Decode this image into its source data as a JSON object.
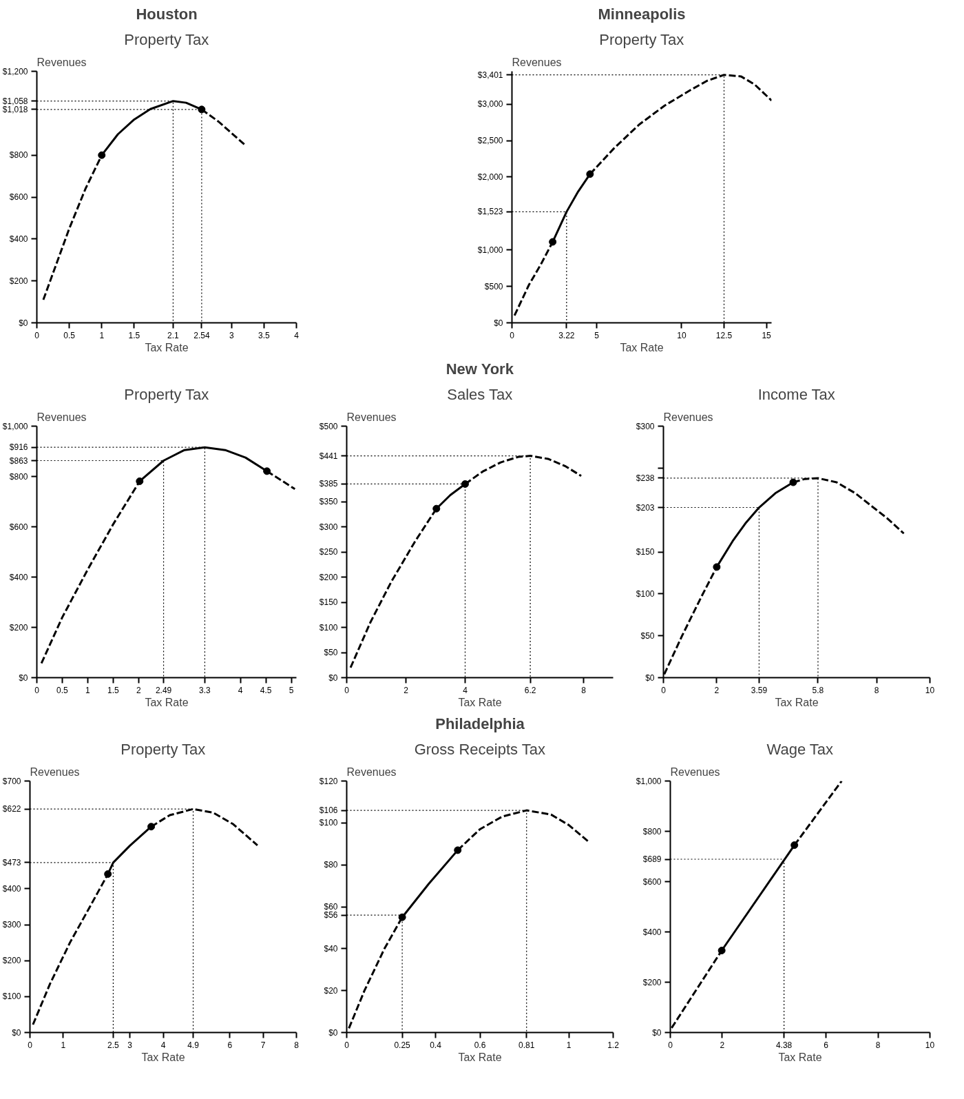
{
  "chart_data": [
    {
      "type": "line",
      "title": "Houston",
      "subtitle": "Property Tax",
      "ylabel": "Revenues",
      "xlabel": "Tax Rate",
      "xlim": [
        0,
        4
      ],
      "ylim": [
        0,
        1200
      ],
      "xticks": [
        0,
        0.5,
        1,
        1.5,
        2.1,
        2.54,
        3,
        3.5,
        4
      ],
      "yticks": [
        {
          "value": 0,
          "label": "$0"
        },
        {
          "value": 200,
          "label": "$200"
        },
        {
          "value": 400,
          "label": "$400"
        },
        {
          "value": 600,
          "label": "$600"
        },
        {
          "value": 800,
          "label": "$800"
        },
        {
          "value": 1018,
          "label": "$1,018"
        },
        {
          "value": 1058,
          "label": "$1,058"
        },
        {
          "value": 1200,
          "label": "$1,200"
        }
      ],
      "grid": false,
      "series": [
        {
          "line_style": "dashed",
          "color": "#000000",
          "x": [
            0.1,
            0.3,
            0.5,
            0.75,
            1
          ],
          "values": [
            110,
            280,
            450,
            640,
            800
          ]
        },
        {
          "line_style": "solid",
          "color": "#000000",
          "x": [
            1,
            1.25,
            1.5,
            1.75,
            2.1,
            2.3,
            2.54
          ],
          "values": [
            800,
            900,
            970,
            1020,
            1058,
            1050,
            1018
          ]
        },
        {
          "line_style": "dashed",
          "color": "#000000",
          "x": [
            2.54,
            2.8,
            3,
            3.22
          ],
          "values": [
            1018,
            960,
            905,
            845
          ]
        },
        {
          "line_style": "dotted",
          "color": "#000000",
          "x": [
            0,
            2.1,
            2.1
          ],
          "values": [
            1058,
            1058,
            0
          ]
        },
        {
          "line_style": "dotted",
          "color": "#000000",
          "x": [
            0,
            2.54,
            2.54
          ],
          "values": [
            1018,
            1018,
            0
          ]
        },
        {
          "type": "scatter",
          "marker": "circle",
          "color": "#000000",
          "x": [
            1,
            2.54
          ],
          "values": [
            800,
            1018
          ]
        }
      ]
    },
    {
      "type": "line",
      "title": "Minneapolis",
      "subtitle": "Property Tax",
      "ylabel": "Revenues",
      "xlabel": "Tax Rate",
      "xlim": [
        0,
        15.3
      ],
      "ylim": [
        0,
        3450
      ],
      "xticks": [
        0,
        3.22,
        5,
        10,
        12.5,
        15
      ],
      "yticks": [
        {
          "value": 0,
          "label": "$0"
        },
        {
          "value": 500,
          "label": "$500"
        },
        {
          "value": 1000,
          "label": "$1,000"
        },
        {
          "value": 1523,
          "label": "$1,523"
        },
        {
          "value": 2000,
          "label": "$2,000"
        },
        {
          "value": 2500,
          "label": "$2,500"
        },
        {
          "value": 3000,
          "label": "$3,000"
        },
        {
          "value": 3401,
          "label": "$3,401"
        }
      ],
      "grid": false,
      "series": [
        {
          "line_style": "dashed",
          "color": "#000000",
          "x": [
            0.15,
            1,
            1.7,
            2.4
          ],
          "values": [
            100,
            520,
            800,
            1110
          ]
        },
        {
          "line_style": "solid",
          "color": "#000000",
          "x": [
            2.4,
            3.22,
            3.9,
            4.6
          ],
          "values": [
            1110,
            1523,
            1800,
            2040
          ]
        },
        {
          "line_style": "dashed",
          "color": "#000000",
          "x": [
            4.6,
            6,
            7.5,
            9,
            10.5,
            11.5,
            12.5,
            13.5,
            14.3,
            15.3
          ],
          "values": [
            2040,
            2390,
            2720,
            2980,
            3190,
            3320,
            3401,
            3380,
            3270,
            3050
          ]
        },
        {
          "line_style": "dotted",
          "color": "#000000",
          "x": [
            0,
            3.22,
            3.22
          ],
          "values": [
            1523,
            1523,
            0
          ]
        },
        {
          "line_style": "dotted",
          "color": "#000000",
          "x": [
            0,
            12.5,
            12.5
          ],
          "values": [
            3401,
            3401,
            0
          ]
        },
        {
          "type": "scatter",
          "marker": "circle",
          "color": "#000000",
          "x": [
            2.4,
            4.6
          ],
          "values": [
            1110,
            2040
          ]
        }
      ]
    },
    {
      "type": "line",
      "subtitle": "Property Tax",
      "ylabel": "Revenues",
      "xlabel": "Tax Rate",
      "xlim": [
        0,
        5.1
      ],
      "ylim": [
        0,
        1000
      ],
      "xticks": [
        0,
        0.5,
        1,
        1.5,
        2,
        2.49,
        3.3,
        4,
        4.5,
        5
      ],
      "yticks": [
        {
          "value": 0,
          "label": "$0"
        },
        {
          "value": 200,
          "label": "$200"
        },
        {
          "value": 400,
          "label": "$400"
        },
        {
          "value": 600,
          "label": "$600"
        },
        {
          "value": 800,
          "label": "$800"
        },
        {
          "value": 863,
          "label": "$863"
        },
        {
          "value": 916,
          "label": "$916"
        },
        {
          "value": 1000,
          "label": "$1,000"
        }
      ],
      "grid": false,
      "series": [
        {
          "line_style": "dashed",
          "color": "#000000",
          "x": [
            0.09,
            0.5,
            1,
            1.5,
            2.02
          ],
          "values": [
            57,
            240,
            430,
            610,
            781
          ]
        },
        {
          "line_style": "solid",
          "color": "#000000",
          "x": [
            2.02,
            2.49,
            2.9,
            3.3,
            3.7,
            4.1,
            4.52
          ],
          "values": [
            781,
            863,
            905,
            916,
            905,
            875,
            821
          ]
        },
        {
          "line_style": "dashed",
          "color": "#000000",
          "x": [
            4.52,
            4.8,
            5.07
          ],
          "values": [
            821,
            785,
            750
          ]
        },
        {
          "line_style": "dotted",
          "color": "#000000",
          "x": [
            0,
            2.49,
            2.49
          ],
          "values": [
            863,
            863,
            0
          ]
        },
        {
          "line_style": "dotted",
          "color": "#000000",
          "x": [
            0,
            3.3,
            3.3
          ],
          "values": [
            916,
            916,
            0
          ]
        },
        {
          "type": "scatter",
          "marker": "circle",
          "color": "#000000",
          "x": [
            2.02,
            4.52
          ],
          "values": [
            781,
            821
          ]
        }
      ]
    },
    {
      "type": "line",
      "title": "New York",
      "subtitle": "Sales Tax",
      "ylabel": "Revenues",
      "xlabel": "Tax Rate",
      "xlim": [
        0,
        9
      ],
      "ylim": [
        0,
        500
      ],
      "xticks": [
        0,
        2,
        4,
        6.2,
        8
      ],
      "yticks": [
        {
          "value": 0,
          "label": "$0"
        },
        {
          "value": 50,
          "label": "$50"
        },
        {
          "value": 100,
          "label": "$100"
        },
        {
          "value": 150,
          "label": "$150"
        },
        {
          "value": 200,
          "label": "$200"
        },
        {
          "value": 250,
          "label": "$250"
        },
        {
          "value": 300,
          "label": "$300"
        },
        {
          "value": 350,
          "label": "$350"
        },
        {
          "value": 385,
          "label": "$385"
        },
        {
          "value": 441,
          "label": "$441"
        },
        {
          "value": 500,
          "label": "$500"
        }
      ],
      "grid": false,
      "series": [
        {
          "line_style": "dashed",
          "color": "#000000",
          "x": [
            0.13,
            0.8,
            1.5,
            2.3,
            3.03
          ],
          "values": [
            20,
            110,
            190,
            270,
            336
          ]
        },
        {
          "line_style": "solid",
          "color": "#000000",
          "x": [
            3.03,
            3.5,
            4
          ],
          "values": [
            336,
            363,
            385
          ]
        },
        {
          "line_style": "dashed",
          "color": "#000000",
          "x": [
            4,
            4.6,
            5.2,
            5.8,
            6.2,
            6.8,
            7.4,
            7.92
          ],
          "values": [
            385,
            410,
            428,
            439,
            441,
            435,
            420,
            401
          ]
        },
        {
          "line_style": "dotted",
          "color": "#000000",
          "x": [
            0,
            4,
            4
          ],
          "values": [
            385,
            385,
            0
          ]
        },
        {
          "line_style": "dotted",
          "color": "#000000",
          "x": [
            0,
            6.2,
            6.2
          ],
          "values": [
            441,
            441,
            0
          ]
        },
        {
          "type": "scatter",
          "marker": "circle",
          "color": "#000000",
          "x": [
            3.03,
            4
          ],
          "values": [
            336,
            385
          ]
        }
      ]
    },
    {
      "type": "line",
      "subtitle": "Income Tax",
      "ylabel": "Revenues",
      "xlabel": "Tax Rate",
      "xlim": [
        0,
        10
      ],
      "ylim": [
        0,
        300
      ],
      "xticks": [
        0,
        2,
        3.59,
        5.8,
        8,
        10
      ],
      "yticks": [
        {
          "value": 0,
          "label": "$0"
        },
        {
          "value": 50,
          "label": "$50"
        },
        {
          "value": 100,
          "label": "$100"
        },
        {
          "value": 150,
          "label": "$150"
        },
        {
          "value": 203,
          "label": "$203"
        },
        {
          "value": 238,
          "label": "$238"
        },
        {
          "value": 250,
          "label": null
        },
        {
          "value": 300,
          "label": "$300"
        }
      ],
      "grid": false,
      "series": [
        {
          "line_style": "dashed",
          "color": "#000000",
          "x": [
            0.03,
            0.7,
            1.4,
            2
          ],
          "values": [
            4,
            50,
            95,
            132
          ]
        },
        {
          "line_style": "solid",
          "color": "#000000",
          "x": [
            2,
            2.6,
            3.1,
            3.59,
            4.2,
            4.87
          ],
          "values": [
            132,
            163,
            185,
            203,
            220,
            233
          ]
        },
        {
          "line_style": "dashed",
          "color": "#000000",
          "x": [
            4.87,
            5.3,
            5.8,
            6.5,
            7.2,
            7.8,
            8.4,
            9.02
          ],
          "values": [
            233,
            237,
            238,
            233,
            220,
            205,
            190,
            172
          ]
        },
        {
          "line_style": "dotted",
          "color": "#000000",
          "x": [
            0,
            3.59,
            3.59
          ],
          "values": [
            203,
            203,
            0
          ]
        },
        {
          "line_style": "dotted",
          "color": "#000000",
          "x": [
            0,
            5.8,
            5.8
          ],
          "values": [
            238,
            238,
            0
          ]
        },
        {
          "type": "scatter",
          "marker": "circle",
          "color": "#000000",
          "x": [
            2,
            4.87
          ],
          "values": [
            132,
            233
          ]
        }
      ]
    },
    {
      "type": "line",
      "subtitle": "Property Tax",
      "ylabel": "Revenues",
      "xlabel": "Tax Rate",
      "xlim": [
        0,
        8
      ],
      "ylim": [
        0,
        700
      ],
      "xticks": [
        0,
        1,
        2.5,
        3,
        4,
        4.9,
        6,
        7,
        8
      ],
      "yticks": [
        {
          "value": 0,
          "label": "$0"
        },
        {
          "value": 100,
          "label": "$100"
        },
        {
          "value": 200,
          "label": "$200"
        },
        {
          "value": 300,
          "label": "$300"
        },
        {
          "value": 400,
          "label": "$400"
        },
        {
          "value": 473,
          "label": "$473"
        },
        {
          "value": 622,
          "label": "$622"
        },
        {
          "value": 700,
          "label": "$700"
        }
      ],
      "grid": false,
      "series": [
        {
          "line_style": "dashed",
          "color": "#000000",
          "x": [
            0.09,
            0.6,
            1.2,
            1.8,
            2.34
          ],
          "values": [
            22,
            135,
            250,
            350,
            441
          ]
        },
        {
          "line_style": "solid",
          "color": "#000000",
          "x": [
            2.34,
            2.5,
            3,
            3.64
          ],
          "values": [
            441,
            473,
            520,
            573
          ]
        },
        {
          "line_style": "dashed",
          "color": "#000000",
          "x": [
            3.64,
            4.2,
            4.9,
            5.5,
            6.1,
            6.83
          ],
          "values": [
            573,
            605,
            622,
            612,
            580,
            521
          ]
        },
        {
          "line_style": "dotted",
          "color": "#000000",
          "x": [
            0,
            2.5,
            2.5
          ],
          "values": [
            473,
            473,
            0
          ]
        },
        {
          "line_style": "dotted",
          "color": "#000000",
          "x": [
            0,
            4.9,
            4.9
          ],
          "values": [
            622,
            622,
            0
          ]
        },
        {
          "type": "scatter",
          "marker": "circle",
          "color": "#000000",
          "x": [
            2.34,
            3.64
          ],
          "values": [
            441,
            573
          ]
        }
      ]
    },
    {
      "type": "line",
      "title": "Philadelphia",
      "subtitle": "Gross Receipts Tax",
      "ylabel": "Revenues",
      "xlabel": "Tax Rate",
      "xlim": [
        0,
        1.2
      ],
      "ylim": [
        0,
        120
      ],
      "xticks": [
        0,
        0.25,
        0.4,
        0.6,
        0.81,
        1,
        1.2
      ],
      "yticks": [
        {
          "value": 0,
          "label": "$0"
        },
        {
          "value": 20,
          "label": "$20"
        },
        {
          "value": 40,
          "label": "$40"
        },
        {
          "value": 56,
          "label": "$56"
        },
        {
          "value": 60,
          "label": "$60"
        },
        {
          "value": 80,
          "label": "$80"
        },
        {
          "value": 100,
          "label": "$100"
        },
        {
          "value": 106,
          "label": "$106"
        },
        {
          "value": 120,
          "label": "$120"
        }
      ],
      "grid": false,
      "series": [
        {
          "line_style": "dashed",
          "color": "#000000",
          "x": [
            0.01,
            0.08,
            0.17,
            0.25
          ],
          "values": [
            2,
            20,
            40,
            55
          ]
        },
        {
          "line_style": "solid",
          "color": "#000000",
          "x": [
            0.25,
            0.37,
            0.5
          ],
          "values": [
            55,
            71,
            87
          ]
        },
        {
          "line_style": "dashed",
          "color": "#000000",
          "x": [
            0.5,
            0.6,
            0.7,
            0.81,
            0.92,
            1,
            1.09
          ],
          "values": [
            87,
            97,
            103,
            106,
            104,
            99,
            91
          ]
        },
        {
          "line_style": "dotted",
          "color": "#000000",
          "x": [
            0,
            0.25,
            0.25
          ],
          "values": [
            56,
            56,
            0
          ]
        },
        {
          "line_style": "dotted",
          "color": "#000000",
          "x": [
            0,
            0.81,
            0.81
          ],
          "values": [
            106,
            106,
            0
          ]
        },
        {
          "type": "scatter",
          "marker": "circle",
          "color": "#000000",
          "x": [
            0.25,
            0.5
          ],
          "values": [
            55,
            87
          ]
        }
      ]
    },
    {
      "type": "line",
      "subtitle": "Wage Tax",
      "ylabel": "Revenues",
      "xlabel": "Tax Rate",
      "xlim": [
        0,
        10
      ],
      "ylim": [
        0,
        1000
      ],
      "xticks": [
        0,
        2,
        4.38,
        6,
        8,
        10
      ],
      "yticks": [
        {
          "value": 0,
          "label": "$0"
        },
        {
          "value": 200,
          "label": "$200"
        },
        {
          "value": 400,
          "label": "$400"
        },
        {
          "value": 600,
          "label": "$600"
        },
        {
          "value": 689,
          "label": "$689"
        },
        {
          "value": 800,
          "label": "$800"
        },
        {
          "value": 1000,
          "label": "$1,000"
        }
      ],
      "grid": false,
      "series": [
        {
          "line_style": "dashed",
          "color": "#000000",
          "x": [
            0.05,
            1.98
          ],
          "values": [
            18,
            326
          ]
        },
        {
          "line_style": "solid",
          "color": "#000000",
          "x": [
            1.98,
            4.78
          ],
          "values": [
            326,
            745
          ]
        },
        {
          "line_style": "dashed",
          "color": "#000000",
          "x": [
            4.78,
            6.6
          ],
          "values": [
            745,
            1000
          ]
        },
        {
          "line_style": "dotted",
          "color": "#000000",
          "x": [
            0,
            4.38,
            4.38
          ],
          "values": [
            689,
            689,
            0
          ]
        },
        {
          "type": "scatter",
          "marker": "circle",
          "color": "#000000",
          "x": [
            1.98,
            4.78
          ],
          "values": [
            326,
            745
          ]
        }
      ]
    }
  ]
}
